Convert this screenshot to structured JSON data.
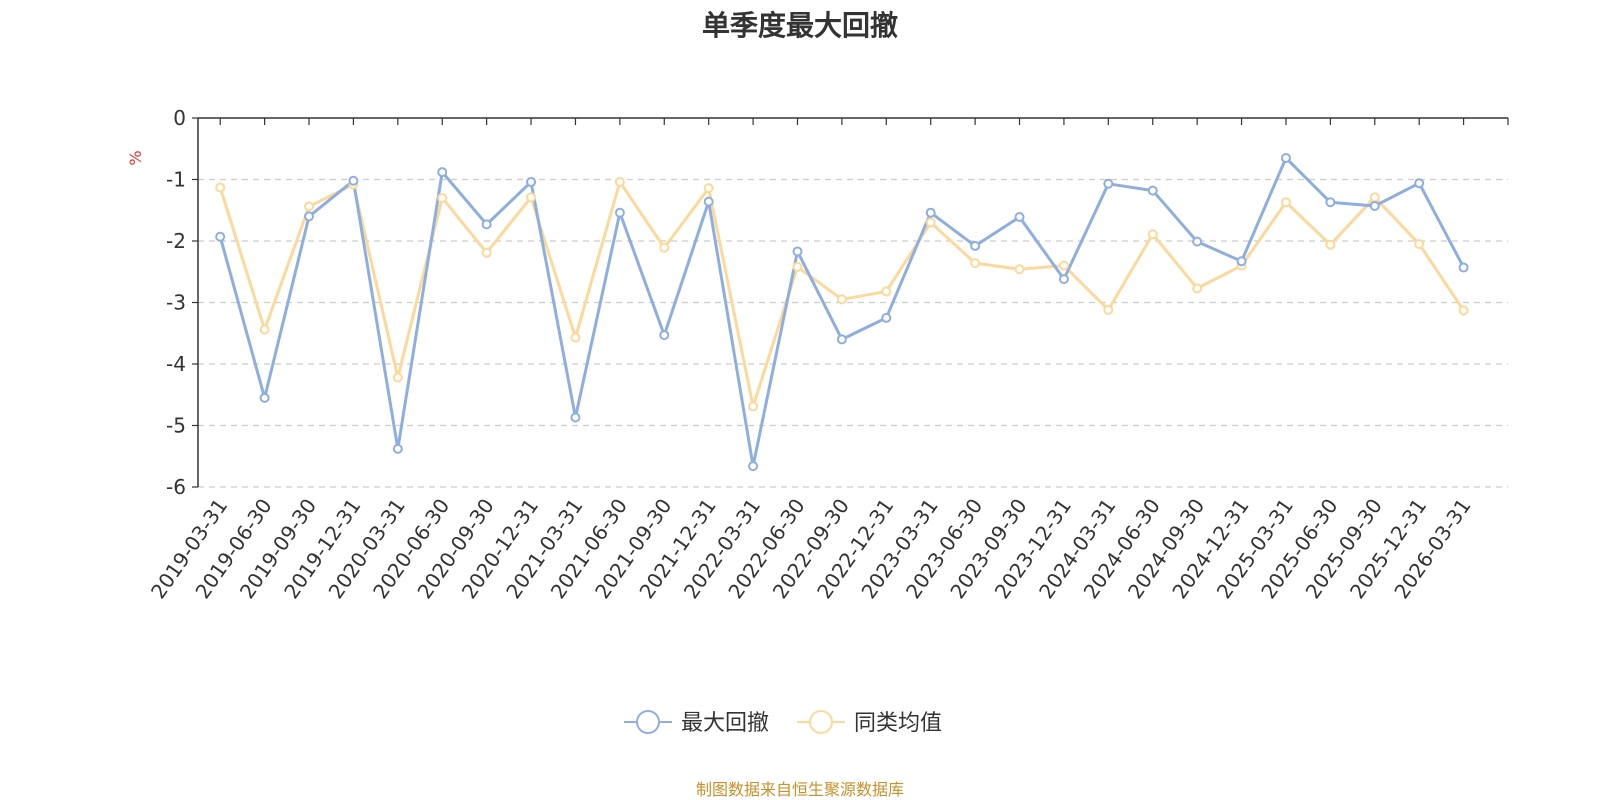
{
  "chart_data": {
    "type": "line",
    "title": "单季度最大回撤",
    "ylabel": "%",
    "ylim": [
      -6,
      0
    ],
    "yticks": [
      0,
      -1,
      -2,
      -3,
      -4,
      -5,
      -6
    ],
    "grid": true,
    "legend_position": "bottom-center",
    "categories": [
      "2019-03-31",
      "2019-06-30",
      "2019-09-30",
      "2019-12-31",
      "2020-03-31",
      "2020-06-30",
      "2020-09-30",
      "2020-12-31",
      "2021-03-31",
      "2021-06-30",
      "2021-09-30",
      "2021-12-31",
      "2022-03-31",
      "2022-06-30",
      "2022-09-30",
      "2022-12-31",
      "2023-03-31",
      "2023-06-30",
      "2023-09-30",
      "2023-12-31",
      "2024-03-31",
      "2024-06-30",
      "2024-09-30",
      "2024-12-31",
      "2025-03-31",
      "2025-06-30",
      "2025-09-30",
      "2025-12-31",
      "2026-03-31"
    ],
    "series": [
      {
        "name": "最大回撤",
        "color": "#8eaee0",
        "values": [
          -1.93,
          -4.55,
          -1.6,
          -1.02,
          -5.38,
          -0.88,
          -1.73,
          -1.04,
          -4.87,
          -1.54,
          -3.53,
          -1.36,
          -5.66,
          -2.17,
          -3.6,
          -3.25,
          -1.54,
          -2.08,
          -1.61,
          -2.62,
          -1.07,
          -1.18,
          -2.01,
          -2.33,
          -0.65,
          -1.37,
          -1.43,
          -1.06,
          -2.43
        ]
      },
      {
        "name": "同类均值",
        "color": "#fcd99b",
        "values": [
          -1.13,
          -3.44,
          -1.44,
          -1.08,
          -4.22,
          -1.3,
          -2.19,
          -1.29,
          -3.57,
          -1.04,
          -2.11,
          -1.14,
          -4.69,
          -2.42,
          -2.95,
          -2.82,
          -1.7,
          -2.36,
          -2.46,
          -2.4,
          -3.12,
          -1.89,
          -2.77,
          -2.4,
          -1.37,
          -2.06,
          -1.29,
          -2.05,
          -3.13
        ]
      }
    ]
  },
  "source_note": "制图数据来自恒生聚源数据库"
}
